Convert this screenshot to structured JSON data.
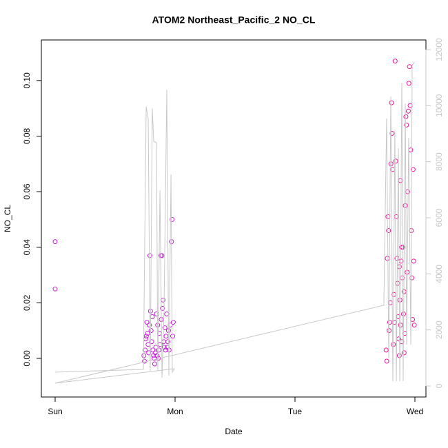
{
  "chart_data": {
    "type": "scatter",
    "title": "ATOM2 Northeast_Pacific_2 NO_CL",
    "x_label": "Date",
    "y_label": "NO_CL",
    "xlim": [
      -0.115,
      3.092
    ],
    "xticks": [
      {
        "value": 0,
        "label": "Sun"
      },
      {
        "value": 1,
        "label": "Mon"
      },
      {
        "value": 2,
        "label": "Tue"
      },
      {
        "value": 3,
        "label": "Wed"
      }
    ],
    "ylim": [
      -0.0139,
      0.1146
    ],
    "yticks": [
      {
        "value": 0,
        "label": "0.00"
      },
      {
        "value": 0.02,
        "label": "0.02"
      },
      {
        "value": 0.04,
        "label": "0.04"
      },
      {
        "value": 0.06,
        "label": "0.06"
      },
      {
        "value": 0.08,
        "label": "0.08"
      },
      {
        "value": 0.1,
        "label": "0.10"
      }
    ],
    "y2lim": [
      -393,
      12344
    ],
    "y2ticks": [
      0,
      2000,
      4000,
      6000,
      8000,
      10000,
      12000
    ],
    "y2_color": "#c8c8c8",
    "series": [
      {
        "color": "#c81ed8",
        "x": [
          0,
          0,
          0.74,
          0.745,
          0.75,
          0.755,
          0.76,
          0.765,
          0.77,
          0.775,
          0.78,
          0.785,
          0.79,
          0.795,
          0.8,
          0.805,
          0.81,
          0.815,
          0.82,
          0.825,
          0.83,
          0.835,
          0.84,
          0.845,
          0.85,
          0.855,
          0.86,
          0.865,
          0.87,
          0.875,
          0.88,
          0.885,
          0.89,
          0.895,
          0.9,
          0.905,
          0.91,
          0.915,
          0.92,
          0.925,
          0.93,
          0.935,
          0.94,
          0.945,
          0.95,
          0.96,
          0.97,
          0.975,
          0.98,
          0.985
        ],
        "values": [
          0.042,
          0.025,
          0.001,
          -0.001,
          0.003,
          0.007,
          0.008,
          0.013,
          0.009,
          0.005,
          0.002,
          0.012,
          0.037,
          0.017,
          0.01,
          0.006,
          0.015,
          0.003,
          0.001,
          0.0,
          -0.002,
          0.002,
          0.004,
          0.016,
          0.001,
          0.012,
          0.0,
          0.003,
          0.009,
          0.005,
          0.037,
          0.014,
          0.037,
          0.018,
          0.021,
          0.006,
          0.004,
          0.011,
          0.003,
          0.008,
          0.016,
          0.004,
          0.006,
          0.01,
          0.003,
          0.012,
          0.042,
          0.05,
          0.008,
          0.013
        ]
      },
      {
        "color": "#f0169c",
        "x": [
          2.76,
          2.765,
          2.77,
          2.775,
          2.78,
          2.785,
          2.79,
          2.795,
          2.8,
          2.805,
          2.81,
          2.815,
          2.82,
          2.825,
          2.83,
          2.835,
          2.84,
          2.845,
          2.85,
          2.855,
          2.86,
          2.865,
          2.87,
          2.875,
          2.88,
          2.885,
          2.89,
          2.895,
          2.9,
          2.905,
          2.91,
          2.915,
          2.92,
          2.925,
          2.93,
          2.935,
          2.94,
          2.945,
          2.95,
          2.955,
          2.96,
          2.965,
          2.97,
          2.975,
          2.98,
          2.985,
          2.99,
          2.995,
          2.91,
          2.87,
          2.88,
          2.89
        ],
        "values": [
          0.003,
          -0.001,
          0.036,
          0.051,
          0.046,
          0.01,
          0.013,
          0.02,
          0.07,
          0.092,
          0.081,
          0.068,
          0.005,
          0.023,
          0.013,
          0.107,
          0.071,
          0.051,
          0.036,
          0.027,
          0.015,
          0.007,
          0.033,
          0.021,
          0.012,
          0.035,
          0.006,
          0.029,
          0.04,
          0.016,
          0.024,
          0.009,
          0.055,
          0.087,
          0.084,
          0.031,
          0.06,
          0.089,
          0.099,
          0.105,
          0.091,
          0.075,
          0.046,
          0.029,
          0.014,
          0.068,
          0.035,
          0.012,
          0.002,
          0.001,
          0.064,
          0.04
        ]
      },
      {
        "type": "line",
        "axis": "y2",
        "color": "#c8c8c8",
        "x": [
          0,
          0.736,
          0.759,
          0.776,
          0.793,
          0.81,
          0.822,
          0.845,
          0.856,
          0.874,
          0.891,
          0.908,
          0.931,
          0.948,
          0.966,
          0.977,
          0.994,
          0,
          2.741,
          2.764,
          2.782,
          2.799,
          2.816,
          2.833,
          2.845,
          2.862,
          2.874,
          2.891,
          2.902,
          2.92,
          2.931,
          2.948,
          2.966,
          2.977,
          2.994
        ],
        "values": [
          492,
          590,
          9960,
          9540,
          540,
          9900,
          8730,
          8680,
          540,
          6980,
          300,
          2700,
          10570,
          370,
          7550,
          490,
          615,
          100,
          2880,
          9540,
          980,
          10330,
          170,
          9100,
          170,
          8480,
          170,
          10820,
          170,
          10080,
          1475,
          8850,
          1475,
          11430,
          11560
        ]
      }
    ]
  }
}
